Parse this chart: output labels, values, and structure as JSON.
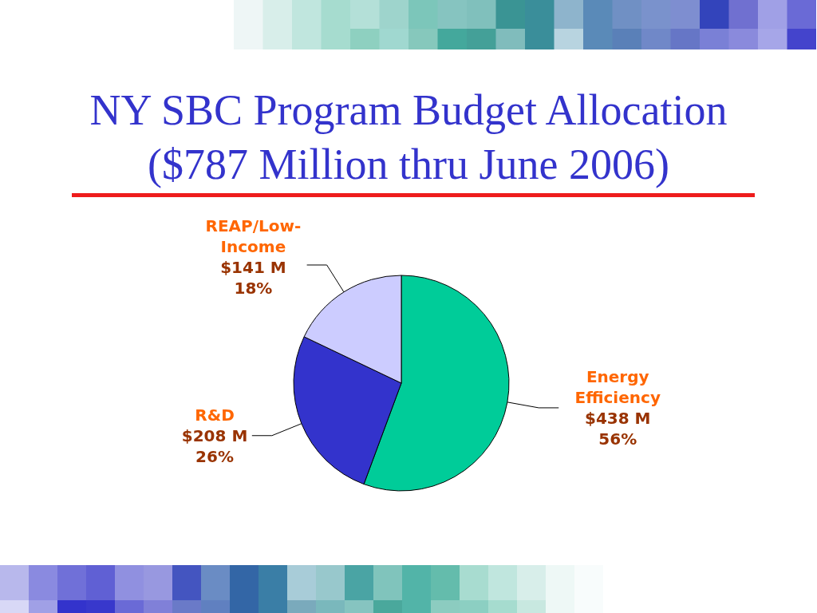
{
  "chart_data": {
    "type": "pie",
    "title": "NY SBC Program Budget Allocation",
    "subtitle": "($787 Million thru June 2006)",
    "categories": [
      "Energy Efficiency",
      "R&D",
      "REAP/Low-Income"
    ],
    "values": [
      438,
      208,
      141
    ],
    "colors": [
      "#00cc99",
      "#3333cc",
      "#ccccff"
    ],
    "value_labels": [
      "$438 M\n56%",
      "$208 M\n26%",
      "$141 M\n18%"
    ]
  }
}
